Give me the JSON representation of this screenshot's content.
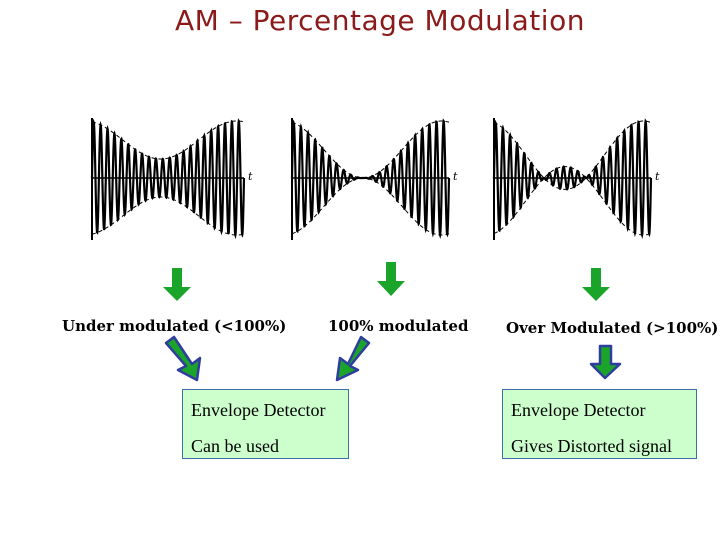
{
  "title": "AM – Percentage Modulation",
  "waveforms": [
    {
      "axis_label": "t",
      "modulation_index": 0.5
    },
    {
      "axis_label": "t",
      "modulation_index": 1.0
    },
    {
      "axis_label": "t",
      "modulation_index": 1.5
    }
  ],
  "labels": {
    "under": "Under modulated (<100%)",
    "full": "100% modulated",
    "over": "Over Modulated (>100%)"
  },
  "boxes": {
    "left": {
      "line1": "Envelope Detector",
      "line2": "Can be used"
    },
    "right": {
      "line1": "Envelope Detector",
      "line2": "Gives Distorted signal"
    }
  },
  "colors": {
    "title": "#8b1a1a",
    "arrow_green": "#1aa52a",
    "arrow_blue": "#2f3e9e",
    "box_fill": "#ccffcc"
  }
}
